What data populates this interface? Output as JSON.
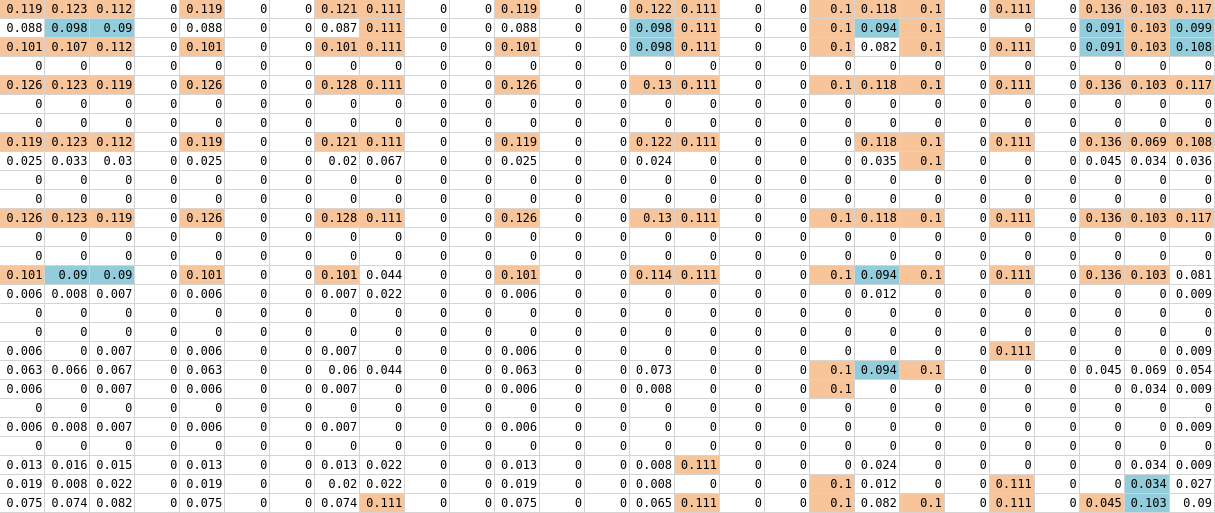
{
  "colors": {
    "orange": "#f8c49a",
    "blue": "#92cddc",
    "grid": "#d4d4d4"
  },
  "rows": [
    [
      "0.119",
      "0.123",
      "0.112",
      "0",
      "0.119",
      "0",
      "0",
      "0.121",
      "0.111",
      "0",
      "0",
      "0.119",
      "0",
      "0",
      "0.122",
      "0.111",
      "0",
      "0",
      "0.1",
      "0.118",
      "0.1",
      "0",
      "0.111",
      "0",
      "0.136",
      "0.103",
      "0.117"
    ],
    [
      "0.088",
      "0.098",
      "0.09",
      "0",
      "0.088",
      "0",
      "0",
      "0.087",
      "0.111",
      "0",
      "0",
      "0.088",
      "0",
      "0",
      "0.098",
      "0.111",
      "0",
      "0",
      "0.1",
      "0.094",
      "0.1",
      "0",
      "0",
      "0",
      "0.091",
      "0.103",
      "0.099"
    ],
    [
      "0.101",
      "0.107",
      "0.112",
      "0",
      "0.101",
      "0",
      "0",
      "0.101",
      "0.111",
      "0",
      "0",
      "0.101",
      "0",
      "0",
      "0.098",
      "0.111",
      "0",
      "0",
      "0.1",
      "0.082",
      "0.1",
      "0",
      "0.111",
      "0",
      "0.091",
      "0.103",
      "0.108"
    ],
    [
      "0",
      "0",
      "0",
      "0",
      "0",
      "0",
      "0",
      "0",
      "0",
      "0",
      "0",
      "0",
      "0",
      "0",
      "0",
      "0",
      "0",
      "0",
      "0",
      "0",
      "0",
      "0",
      "0",
      "0",
      "0",
      "0",
      "0"
    ],
    [
      "0.126",
      "0.123",
      "0.119",
      "0",
      "0.126",
      "0",
      "0",
      "0.128",
      "0.111",
      "0",
      "0",
      "0.126",
      "0",
      "0",
      "0.13",
      "0.111",
      "0",
      "0",
      "0.1",
      "0.118",
      "0.1",
      "0",
      "0.111",
      "0",
      "0.136",
      "0.103",
      "0.117"
    ],
    [
      "0",
      "0",
      "0",
      "0",
      "0",
      "0",
      "0",
      "0",
      "0",
      "0",
      "0",
      "0",
      "0",
      "0",
      "0",
      "0",
      "0",
      "0",
      "0",
      "0",
      "0",
      "0",
      "0",
      "0",
      "0",
      "0",
      "0"
    ],
    [
      "0",
      "0",
      "0",
      "0",
      "0",
      "0",
      "0",
      "0",
      "0",
      "0",
      "0",
      "0",
      "0",
      "0",
      "0",
      "0",
      "0",
      "0",
      "0",
      "0",
      "0",
      "0",
      "0",
      "0",
      "0",
      "0",
      "0"
    ],
    [
      "0.119",
      "0.123",
      "0.112",
      "0",
      "0.119",
      "0",
      "0",
      "0.121",
      "0.111",
      "0",
      "0",
      "0.119",
      "0",
      "0",
      "0.122",
      "0.111",
      "0",
      "0",
      "0",
      "0.118",
      "0.1",
      "0",
      "0.111",
      "0",
      "0.136",
      "0.069",
      "0.108"
    ],
    [
      "0.025",
      "0.033",
      "0.03",
      "0",
      "0.025",
      "0",
      "0",
      "0.02",
      "0.067",
      "0",
      "0",
      "0.025",
      "0",
      "0",
      "0.024",
      "0",
      "0",
      "0",
      "0",
      "0.035",
      "0.1",
      "0",
      "0",
      "0",
      "0.045",
      "0.034",
      "0.036"
    ],
    [
      "0",
      "0",
      "0",
      "0",
      "0",
      "0",
      "0",
      "0",
      "0",
      "0",
      "0",
      "0",
      "0",
      "0",
      "0",
      "0",
      "0",
      "0",
      "0",
      "0",
      "0",
      "0",
      "0",
      "0",
      "0",
      "0",
      "0"
    ],
    [
      "0",
      "0",
      "0",
      "0",
      "0",
      "0",
      "0",
      "0",
      "0",
      "0",
      "0",
      "0",
      "0",
      "0",
      "0",
      "0",
      "0",
      "0",
      "0",
      "0",
      "0",
      "0",
      "0",
      "0",
      "0",
      "0",
      "0"
    ],
    [
      "0.126",
      "0.123",
      "0.119",
      "0",
      "0.126",
      "0",
      "0",
      "0.128",
      "0.111",
      "0",
      "0",
      "0.126",
      "0",
      "0",
      "0.13",
      "0.111",
      "0",
      "0",
      "0.1",
      "0.118",
      "0.1",
      "0",
      "0.111",
      "0",
      "0.136",
      "0.103",
      "0.117"
    ],
    [
      "0",
      "0",
      "0",
      "0",
      "0",
      "0",
      "0",
      "0",
      "0",
      "0",
      "0",
      "0",
      "0",
      "0",
      "0",
      "0",
      "0",
      "0",
      "0",
      "0",
      "0",
      "0",
      "0",
      "0",
      "0",
      "0",
      "0"
    ],
    [
      "0",
      "0",
      "0",
      "0",
      "0",
      "0",
      "0",
      "0",
      "0",
      "0",
      "0",
      "0",
      "0",
      "0",
      "0",
      "0",
      "0",
      "0",
      "0",
      "0",
      "0",
      "0",
      "0",
      "0",
      "0",
      "0",
      "0"
    ],
    [
      "0.101",
      "0.09",
      "0.09",
      "0",
      "0.101",
      "0",
      "0",
      "0.101",
      "0.044",
      "0",
      "0",
      "0.101",
      "0",
      "0",
      "0.114",
      "0.111",
      "0",
      "0",
      "0.1",
      "0.094",
      "0.1",
      "0",
      "0.111",
      "0",
      "0.136",
      "0.103",
      "0.081"
    ],
    [
      "0.006",
      "0.008",
      "0.007",
      "0",
      "0.006",
      "0",
      "0",
      "0.007",
      "0.022",
      "0",
      "0",
      "0.006",
      "0",
      "0",
      "0",
      "0",
      "0",
      "0",
      "0",
      "0.012",
      "0",
      "0",
      "0",
      "0",
      "0",
      "0",
      "0.009"
    ],
    [
      "0",
      "0",
      "0",
      "0",
      "0",
      "0",
      "0",
      "0",
      "0",
      "0",
      "0",
      "0",
      "0",
      "0",
      "0",
      "0",
      "0",
      "0",
      "0",
      "0",
      "0",
      "0",
      "0",
      "0",
      "0",
      "0",
      "0"
    ],
    [
      "0",
      "0",
      "0",
      "0",
      "0",
      "0",
      "0",
      "0",
      "0",
      "0",
      "0",
      "0",
      "0",
      "0",
      "0",
      "0",
      "0",
      "0",
      "0",
      "0",
      "0",
      "0",
      "0",
      "0",
      "0",
      "0",
      "0"
    ],
    [
      "0.006",
      "0",
      "0.007",
      "0",
      "0.006",
      "0",
      "0",
      "0.007",
      "0",
      "0",
      "0",
      "0.006",
      "0",
      "0",
      "0",
      "0",
      "0",
      "0",
      "0",
      "0",
      "0",
      "0",
      "0.111",
      "0",
      "0",
      "0",
      "0.009"
    ],
    [
      "0.063",
      "0.066",
      "0.067",
      "0",
      "0.063",
      "0",
      "0",
      "0.06",
      "0.044",
      "0",
      "0",
      "0.063",
      "0",
      "0",
      "0.073",
      "0",
      "0",
      "0",
      "0.1",
      "0.094",
      "0.1",
      "0",
      "0",
      "0",
      "0.045",
      "0.069",
      "0.054"
    ],
    [
      "0.006",
      "0",
      "0.007",
      "0",
      "0.006",
      "0",
      "0",
      "0.007",
      "0",
      "0",
      "0",
      "0.006",
      "0",
      "0",
      "0.008",
      "0",
      "0",
      "0",
      "0.1",
      "0",
      "0",
      "0",
      "0",
      "0",
      "0",
      "0.034",
      "0.009"
    ],
    [
      "0",
      "0",
      "0",
      "0",
      "0",
      "0",
      "0",
      "0",
      "0",
      "0",
      "0",
      "0",
      "0",
      "0",
      "0",
      "0",
      "0",
      "0",
      "0",
      "0",
      "0",
      "0",
      "0",
      "0",
      "0",
      "0",
      "0"
    ],
    [
      "0.006",
      "0.008",
      "0.007",
      "0",
      "0.006",
      "0",
      "0",
      "0.007",
      "0",
      "0",
      "0",
      "0.006",
      "0",
      "0",
      "0",
      "0",
      "0",
      "0",
      "0",
      "0",
      "0",
      "0",
      "0",
      "0",
      "0",
      "0",
      "0.009"
    ],
    [
      "0",
      "0",
      "0",
      "0",
      "0",
      "0",
      "0",
      "0",
      "0",
      "0",
      "0",
      "0",
      "0",
      "0",
      "0",
      "0",
      "0",
      "0",
      "0",
      "0",
      "0",
      "0",
      "0",
      "0",
      "0",
      "0",
      "0"
    ],
    [
      "0.013",
      "0.016",
      "0.015",
      "0",
      "0.013",
      "0",
      "0",
      "0.013",
      "0.022",
      "0",
      "0",
      "0.013",
      "0",
      "0",
      "0.008",
      "0.111",
      "0",
      "0",
      "0",
      "0.024",
      "0",
      "0",
      "0",
      "0",
      "0",
      "0.034",
      "0.009"
    ],
    [
      "0.019",
      "0.008",
      "0.022",
      "0",
      "0.019",
      "0",
      "0",
      "0.02",
      "0.022",
      "0",
      "0",
      "0.019",
      "0",
      "0",
      "0.008",
      "0",
      "0",
      "0",
      "0.1",
      "0.012",
      "0",
      "0",
      "0.111",
      "0",
      "0",
      "0.034",
      "0.027"
    ],
    [
      "0.075",
      "0.074",
      "0.082",
      "0",
      "0.075",
      "0",
      "0",
      "0.074",
      "0.111",
      "0",
      "0",
      "0.075",
      "0",
      "0",
      "0.065",
      "0.111",
      "0",
      "0",
      "0.1",
      "0.082",
      "0.1",
      "0",
      "0.111",
      "0",
      "0.045",
      "0.103",
      "0.09"
    ]
  ],
  "highlights": [
    "ooo_o__oo__o__oo__ooo_o_ooo",
    "_bb_____o_____bo__obo___bob",
    "ooo_o__oo__o__bo__o_o_o_bob",
    "___________________________",
    "ooo_o__oo__o__oo__ooo_o_ooo",
    "___________________________",
    "___________________________",
    "ooo_o__oo__o__oo___oo_o_ooo",
    "____________________o______",
    "___________________________",
    "___________________________",
    "ooo_o__oo__o__oo__ooo_o_ooo",
    "___________________________",
    "___________________________",
    "obb_o__o___o__oo__obo_o_oo_",
    "___________________________",
    "___________________________",
    "___________________________",
    "______________________o____",
    "__________________obo______",
    "__________________o________",
    "___________________________",
    "___________________________",
    "___________________________",
    "_______________o___________",
    "__________________o___o__b_",
    "________o______o__o_o_o_ob_"
  ]
}
